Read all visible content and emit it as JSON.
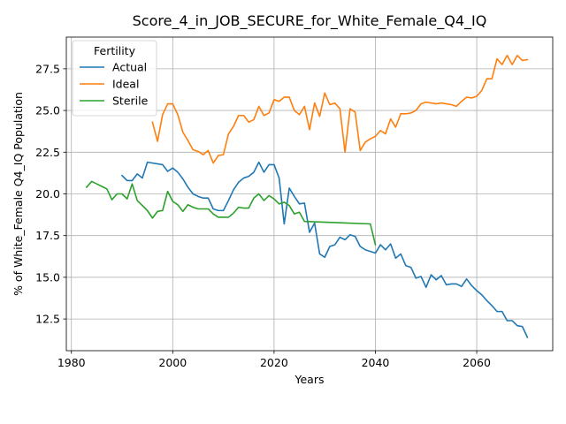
{
  "chart_data": {
    "type": "line",
    "title": "Score_4_in_JOB_SECURE_for_White_Female_Q4_IQ",
    "xlabel": "Years",
    "ylabel": "% of White_Female Q4_IQ Population",
    "xlim": [
      1979,
      2075
    ],
    "ylim": [
      10.6,
      29.4
    ],
    "xticks": [
      1980,
      2000,
      2020,
      2040,
      2060
    ],
    "yticks": [
      12.5,
      15.0,
      17.5,
      20.0,
      22.5,
      25.0,
      27.5
    ],
    "grid": true,
    "legend": {
      "title": "Fertility",
      "placement": "upper-left"
    },
    "series": [
      {
        "name": "Actual",
        "color": "#1f77b4",
        "x": [
          1990,
          1991,
          1992,
          1993,
          1994,
          1995,
          1998,
          1999,
          2000,
          2001,
          2002,
          2003,
          2004,
          2005,
          2006,
          2007,
          2008,
          2009,
          2010,
          2011,
          2012,
          2013,
          2014,
          2015,
          2016,
          2017,
          2018,
          2019,
          2020,
          2021,
          2022,
          2023,
          2024,
          2025,
          2026,
          2027,
          2028,
          2029,
          2030,
          2031,
          2032,
          2033,
          2034,
          2035,
          2036,
          2037,
          2038,
          2039,
          2040,
          2041,
          2042,
          2043,
          2044,
          2045,
          2046,
          2047,
          2048,
          2049,
          2050,
          2051,
          2052,
          2053,
          2054,
          2055,
          2056,
          2057,
          2058,
          2059,
          2060,
          2061,
          2062,
          2063,
          2064,
          2065,
          2066,
          2067,
          2068,
          2069,
          2070
        ],
        "values": [
          21.1,
          20.8,
          20.8,
          21.2,
          20.95,
          21.9,
          21.75,
          21.35,
          21.55,
          21.3,
          20.9,
          20.4,
          20.0,
          19.85,
          19.75,
          19.75,
          19.1,
          19.0,
          19.0,
          19.6,
          20.25,
          20.7,
          20.95,
          21.05,
          21.3,
          21.9,
          21.3,
          21.75,
          21.75,
          20.95,
          18.2,
          20.35,
          19.85,
          19.4,
          19.45,
          17.7,
          18.25,
          16.4,
          16.2,
          16.85,
          16.95,
          17.4,
          17.25,
          17.55,
          17.45,
          16.85,
          16.65,
          16.55,
          16.45,
          16.95,
          16.65,
          17.0,
          16.15,
          16.4,
          15.7,
          15.6,
          14.95,
          15.05,
          14.4,
          15.15,
          14.85,
          15.1,
          14.55,
          14.6,
          14.6,
          14.45,
          14.9,
          14.5,
          14.2,
          13.95,
          13.6,
          13.3,
          12.95,
          12.95,
          12.4,
          12.4,
          12.1,
          12.05,
          11.4
        ]
      },
      {
        "name": "Ideal",
        "color": "#ff7f0e",
        "x": [
          1996,
          1997,
          1998,
          1999,
          2000,
          2001,
          2002,
          2003,
          2004,
          2005,
          2006,
          2007,
          2008,
          2009,
          2010,
          2011,
          2012,
          2013,
          2014,
          2015,
          2016,
          2017,
          2018,
          2019,
          2020,
          2021,
          2022,
          2023,
          2024,
          2025,
          2026,
          2027,
          2028,
          2029,
          2030,
          2031,
          2032,
          2033,
          2034,
          2035,
          2036,
          2037,
          2038,
          2039,
          2040,
          2041,
          2042,
          2043,
          2044,
          2045,
          2046,
          2047,
          2048,
          2049,
          2050,
          2051,
          2052,
          2053,
          2054,
          2055,
          2056,
          2057,
          2058,
          2059,
          2060,
          2061,
          2062,
          2063,
          2064,
          2065,
          2066,
          2067,
          2068,
          2069,
          2070
        ],
        "values": [
          24.3,
          23.15,
          24.75,
          25.4,
          25.4,
          24.75,
          23.7,
          23.2,
          22.65,
          22.55,
          22.35,
          22.6,
          21.85,
          22.3,
          22.35,
          23.6,
          24.05,
          24.7,
          24.7,
          24.3,
          24.45,
          25.25,
          24.7,
          24.85,
          25.65,
          25.55,
          25.8,
          25.8,
          25.0,
          24.75,
          25.25,
          23.85,
          25.45,
          24.65,
          26.05,
          25.35,
          25.45,
          25.1,
          22.5,
          25.1,
          24.9,
          22.6,
          23.1,
          23.3,
          23.45,
          23.8,
          23.6,
          24.5,
          24.0,
          24.8,
          24.8,
          24.85,
          25.0,
          25.4,
          25.5,
          25.45,
          25.4,
          25.45,
          25.4,
          25.35,
          25.25,
          25.55,
          25.8,
          25.75,
          25.85,
          26.2,
          26.9,
          26.9,
          28.1,
          27.75,
          28.3,
          27.75,
          28.3,
          28.0,
          28.05
        ]
      },
      {
        "name": "Sterile",
        "color": "#2ca02c",
        "x": [
          1983,
          1984,
          1985,
          1986,
          1987,
          1988,
          1989,
          1990,
          1991,
          1992,
          1993,
          1994,
          1995,
          1996,
          1997,
          1998,
          1999,
          2000,
          2001,
          2002,
          2003,
          2004,
          2005,
          2006,
          2007,
          2008,
          2009,
          2010,
          2011,
          2012,
          2013,
          2014,
          2015,
          2016,
          2017,
          2018,
          2019,
          2020,
          2021,
          2022,
          2023,
          2024,
          2025,
          2026,
          2039,
          2040
        ],
        "values": [
          20.4,
          20.75,
          20.6,
          20.45,
          20.3,
          19.65,
          20.0,
          20.0,
          19.7,
          20.6,
          19.6,
          19.3,
          19.0,
          18.55,
          18.95,
          19.0,
          20.15,
          19.55,
          19.35,
          18.95,
          19.35,
          19.2,
          19.1,
          19.1,
          19.1,
          18.8,
          18.6,
          18.6,
          18.6,
          18.85,
          19.2,
          19.15,
          19.15,
          19.75,
          20.0,
          19.6,
          19.9,
          19.7,
          19.4,
          19.5,
          19.3,
          18.8,
          18.9,
          18.35,
          18.2,
          16.95
        ]
      }
    ]
  }
}
